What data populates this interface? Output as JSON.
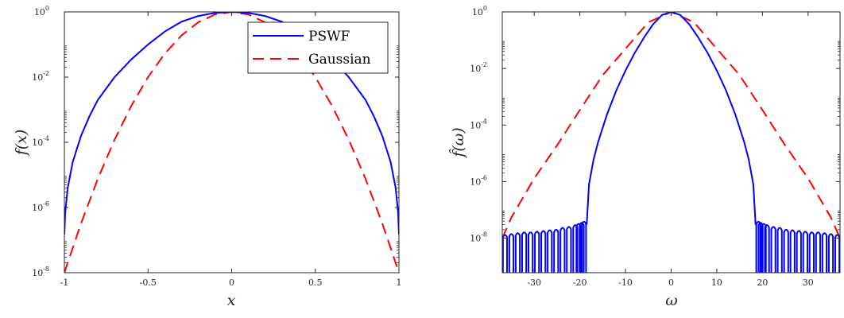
{
  "chart_data": [
    {
      "type": "line",
      "yscale": "log",
      "xlabel": "x",
      "ylabel": "f(x)",
      "xlim": [
        -1,
        1
      ],
      "ylim": [
        1e-08,
        1
      ],
      "xticks": [
        -1,
        -0.5,
        0,
        0.5,
        1
      ],
      "xtick_labels": [
        "-1",
        "-0.5",
        "0",
        "0.5",
        "1"
      ],
      "yticks": [
        -8,
        -6,
        -4,
        -2,
        0
      ],
      "ytick_labels": [
        {
          "b": "10",
          "e": "-8"
        },
        {
          "b": "10",
          "e": "-6"
        },
        {
          "b": "10",
          "e": "-4"
        },
        {
          "b": "10",
          "e": "-2"
        },
        {
          "b": "10",
          "e": "0"
        }
      ],
      "grid": false,
      "legend_position": "top-right",
      "series": [
        {
          "name": "PSWF",
          "color": "#0000ff",
          "style": "solid",
          "x": [
            -1,
            -0.995,
            -0.98,
            -0.95,
            -0.9,
            -0.85,
            -0.8,
            -0.7,
            -0.6,
            -0.5,
            -0.4,
            -0.3,
            -0.2,
            -0.1,
            0,
            0.1,
            0.2,
            0.3,
            0.4,
            0.5,
            0.6,
            0.7,
            0.8,
            0.85,
            0.9,
            0.95,
            0.98,
            0.995,
            1
          ],
          "y": [
            1.5e-07,
            7e-07,
            4e-06,
            2.5e-05,
            0.00016,
            0.00063,
            0.002,
            0.01,
            0.035,
            0.1,
            0.25,
            0.5,
            0.75,
            0.93,
            1,
            0.93,
            0.75,
            0.5,
            0.25,
            0.1,
            0.035,
            0.01,
            0.002,
            0.00063,
            0.00016,
            2.5e-05,
            4e-06,
            7e-07,
            1.5e-07
          ]
        },
        {
          "name": "Gaussian",
          "color": "#ff0000",
          "style": "dashed",
          "x": [
            -1,
            -0.9,
            -0.8,
            -0.7,
            -0.6,
            -0.5,
            -0.4,
            -0.3,
            -0.2,
            -0.1,
            0,
            0.1,
            0.2,
            0.3,
            0.4,
            0.5,
            0.6,
            0.7,
            0.8,
            0.9,
            1
          ],
          "y": [
            1e-08,
            3.3e-07,
            7.6e-06,
            0.00012,
            0.00132,
            0.01,
            0.0525,
            0.19,
            0.479,
            0.832,
            1,
            0.832,
            0.479,
            0.19,
            0.0525,
            0.01,
            0.00132,
            0.00012,
            7.6e-06,
            3.3e-07,
            1e-08
          ]
        }
      ]
    },
    {
      "type": "line",
      "yscale": "log",
      "xlabel": "ω",
      "ylabel": "f̂(ω)",
      "xlim": [
        -37,
        37
      ],
      "ylim": [
        6e-10,
        1
      ],
      "xticks": [
        -30,
        -20,
        -10,
        0,
        10,
        20,
        30
      ],
      "xtick_labels": [
        "-30",
        "-20",
        "-10",
        "0",
        "10",
        "20",
        "30"
      ],
      "yticks": [
        -8,
        -6,
        -4,
        -2,
        0
      ],
      "ytick_labels": [
        {
          "b": "10",
          "e": "-8"
        },
        {
          "b": "10",
          "e": "-6"
        },
        {
          "b": "10",
          "e": "-4"
        },
        {
          "b": "10",
          "e": "-2"
        },
        {
          "b": "10",
          "e": "0"
        }
      ],
      "grid": false,
      "series": [
        {
          "name": "PSWF",
          "color": "#0000ff",
          "style": "solid",
          "main_lobe": {
            "x": [
              -18.5,
              -18,
              -17,
              -16,
              -15,
              -14,
              -12,
              -10,
              -8,
              -6,
              -4,
              -2,
              0,
              2,
              4,
              6,
              8,
              10,
              12,
              14,
              15,
              16,
              17,
              18,
              18.5
            ],
            "y": [
              3e-08,
              8e-07,
              6e-06,
              2.5e-05,
              8e-05,
              0.00025,
              0.0017,
              0.0085,
              0.035,
              0.12,
              0.36,
              0.78,
              1,
              0.78,
              0.36,
              0.12,
              0.035,
              0.0085,
              0.0017,
              0.00025,
              8e-05,
              2.5e-05,
              6e-06,
              8e-07,
              3e-08
            ]
          },
          "sidelobes": {
            "peaks_x": [
              -36.4,
              -35,
              -33.6,
              -32.2,
              -30.8,
              -29.4,
              -28,
              -26.6,
              -25.2,
              -23.8,
              -22.4,
              -21,
              -20.3,
              -19.6,
              -19.1,
              19.1,
              19.6,
              20.3,
              21,
              22.4,
              23.8,
              25.2,
              26.6,
              28,
              29.4,
              30.8,
              32.2,
              33.6,
              35,
              36.4
            ],
            "peaks_y": [
              1.3e-08,
              1.4e-08,
              1.5e-08,
              1.6e-08,
              1.6e-08,
              1.7e-08,
              1.8e-08,
              1.9e-08,
              2e-08,
              2.3e-08,
              2.5e-08,
              2.9e-08,
              3.2e-08,
              3.5e-08,
              3.8e-08,
              3.8e-08,
              3.5e-08,
              3.2e-08,
              2.9e-08,
              2.5e-08,
              2.3e-08,
              2e-08,
              1.9e-08,
              1.8e-08,
              1.7e-08,
              1.6e-08,
              1.6e-08,
              1.5e-08,
              1.4e-08,
              1.3e-08
            ]
          }
        },
        {
          "name": "Gaussian",
          "color": "#ff0000",
          "style": "dashed",
          "x": [
            -37,
            -35,
            -30,
            -25,
            -20,
            -15,
            -10,
            -5,
            0,
            5,
            10,
            15,
            20,
            25,
            30,
            35,
            37
          ],
          "y": [
            1e-08,
            5.4e-08,
            1.3e-06,
            1.9e-05,
            0.00034,
            0.0058,
            0.05,
            0.43,
            1,
            0.43,
            0.05,
            0.0058,
            0.00034,
            1.9e-05,
            1.3e-06,
            5.4e-08,
            1e-08
          ]
        }
      ]
    }
  ]
}
